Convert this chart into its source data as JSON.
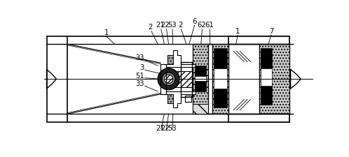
{
  "bg_color": "#ffffff",
  "line_color": "#000000",
  "fig_width": 4.98,
  "fig_height": 2.25,
  "dpi": 100
}
